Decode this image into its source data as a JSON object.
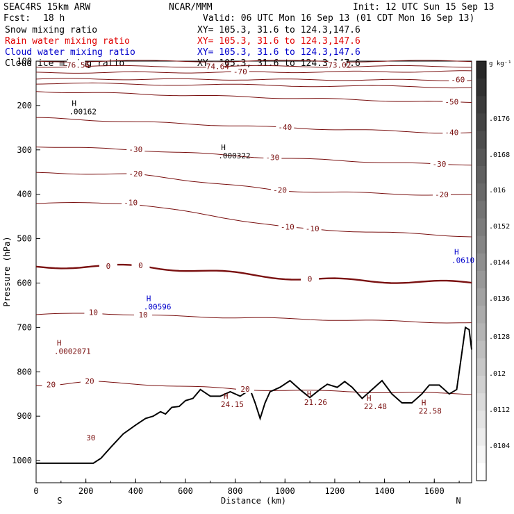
{
  "header": {
    "model": "SEAC4RS 15km ARW",
    "org": "NCAR/MMM",
    "init": "Init: 12 UTC Sun 15 Sep 13",
    "fcst_label": "Fcst:",
    "fcst_value": "18 h",
    "valid": "Valid: 06 UTC Mon 16 Sep 13 (01 CDT Mon 16 Sep 13)",
    "fields": [
      {
        "name": "Snow mixing ratio",
        "color": "#000000",
        "xy": "XY= 105.3, 31.6 to 124.3,147.6"
      },
      {
        "name": "Rain water mixing ratio",
        "color": "#e00000",
        "xy": "XY= 105.3, 31.6 to 124.3,147.6"
      },
      {
        "name": "Cloud water mixing ratio",
        "color": "#0000cc",
        "xy": "XY= 105.3, 31.6 to 124.3,147.6"
      },
      {
        "name": "Cloud ice mixing ratio",
        "color": "#000000",
        "xy": "XY= 105.3, 31.6 to 124.3,147.6"
      }
    ]
  },
  "chart_data": {
    "type": "contour",
    "xlabel": "Distance (km)",
    "ylabel": "Pressure (hPa)",
    "xlim": [
      0,
      1750
    ],
    "ylim": [
      1050,
      100
    ],
    "x_ticks": [
      0,
      200,
      400,
      600,
      800,
      1000,
      1200,
      1400,
      1600
    ],
    "y_ticks": [
      100,
      200,
      300,
      400,
      500,
      600,
      700,
      800,
      900,
      1000
    ],
    "x_tick_label_100": "100",
    "end_labels": {
      "left": "S",
      "right": "N"
    },
    "colorbar": {
      "unit": "g kg⁻¹",
      "labels": [
        ".0176",
        ".0168",
        ".016",
        ".0152",
        ".0144",
        ".0136",
        ".0128",
        ".012",
        ".0112",
        ".0104"
      ]
    },
    "temperature_contours": [
      {
        "level": -76.56,
        "label": "-76.56",
        "x": 160,
        "p": 110
      },
      {
        "level": -74.64,
        "label": "-74.64",
        "x": 720,
        "p": 113
      },
      {
        "level": -73.02,
        "label": "-73.02",
        "x": 1210,
        "p": 110
      },
      {
        "level": -70,
        "label": "-70",
        "x": 820,
        "p": 125
      },
      {
        "level": -60,
        "label": "-60",
        "x": 1695,
        "p": 143
      },
      {
        "level": -50,
        "label": "-50",
        "x": 1670,
        "p": 193
      },
      {
        "level": -40,
        "label": "-40",
        "x": 1000,
        "p": 250
      },
      {
        "level": -40,
        "label": "-40",
        "x": 1670,
        "p": 262
      },
      {
        "level": -30,
        "label": "-30",
        "x": 400,
        "p": 300
      },
      {
        "level": -30,
        "label": "-30",
        "x": 950,
        "p": 318
      },
      {
        "level": -30,
        "label": "-30",
        "x": 1620,
        "p": 333
      },
      {
        "level": -20,
        "label": "-20",
        "x": 400,
        "p": 355
      },
      {
        "level": -20,
        "label": "-20",
        "x": 980,
        "p": 392
      },
      {
        "level": -20,
        "label": "-20",
        "x": 1630,
        "p": 402
      },
      {
        "level": -10,
        "label": "-10",
        "x": 380,
        "p": 420
      },
      {
        "level": -10,
        "label": "-10",
        "x": 1010,
        "p": 475
      },
      {
        "level": -10,
        "label": "-10",
        "x": 1110,
        "p": 479
      },
      {
        "level": 0,
        "label": "0",
        "x": 290,
        "p": 563
      },
      {
        "level": 0,
        "label": "0",
        "x": 420,
        "p": 562
      },
      {
        "level": 0,
        "label": "0",
        "x": 1100,
        "p": 592
      },
      {
        "level": 10,
        "label": "10",
        "x": 230,
        "p": 667
      },
      {
        "level": 10,
        "label": "10",
        "x": 430,
        "p": 673
      },
      {
        "level": 20,
        "label": "20",
        "x": 60,
        "p": 830
      },
      {
        "level": 20,
        "label": "20",
        "x": 215,
        "p": 822
      },
      {
        "level": 20,
        "label": "20",
        "x": 840,
        "p": 840
      },
      {
        "level": 30,
        "label": "30",
        "x": 220,
        "p": 950
      }
    ],
    "highs": [
      {
        "value": ".00162",
        "x": 160,
        "p": 210,
        "color": "#000000"
      },
      {
        "value": ".000322",
        "x": 760,
        "p": 310,
        "color": "#000000"
      },
      {
        "value": ".00596",
        "x": 460,
        "p": 650,
        "color": "#0000cc"
      },
      {
        "value": ".0002071",
        "x": 100,
        "p": 750,
        "color": "#7a1010"
      },
      {
        "value": "24.15",
        "x": 770,
        "p": 870,
        "color": "#7a1010"
      },
      {
        "value": "21.26",
        "x": 1105,
        "p": 865,
        "color": "#7a1010"
      },
      {
        "value": "22.48",
        "x": 1345,
        "p": 875,
        "color": "#7a1010"
      },
      {
        "value": "22.58",
        "x": 1565,
        "p": 885,
        "color": "#7a1010"
      },
      {
        "value": ".0610",
        "x": 1760,
        "p": 545,
        "color": "#0000cc"
      }
    ],
    "terrain": [
      {
        "x": 0,
        "p": 1006
      },
      {
        "x": 150,
        "p": 1006
      },
      {
        "x": 230,
        "p": 1006
      },
      {
        "x": 260,
        "p": 995
      },
      {
        "x": 300,
        "p": 970
      },
      {
        "x": 350,
        "p": 940
      },
      {
        "x": 400,
        "p": 920
      },
      {
        "x": 440,
        "p": 905
      },
      {
        "x": 470,
        "p": 900
      },
      {
        "x": 500,
        "p": 890
      },
      {
        "x": 520,
        "p": 895
      },
      {
        "x": 545,
        "p": 880
      },
      {
        "x": 575,
        "p": 878
      },
      {
        "x": 600,
        "p": 865
      },
      {
        "x": 630,
        "p": 860
      },
      {
        "x": 660,
        "p": 840
      },
      {
        "x": 700,
        "p": 855
      },
      {
        "x": 740,
        "p": 855
      },
      {
        "x": 780,
        "p": 845
      },
      {
        "x": 820,
        "p": 855
      },
      {
        "x": 860,
        "p": 840
      },
      {
        "x": 880,
        "p": 870
      },
      {
        "x": 900,
        "p": 905
      },
      {
        "x": 920,
        "p": 870
      },
      {
        "x": 940,
        "p": 845
      },
      {
        "x": 980,
        "p": 835
      },
      {
        "x": 1020,
        "p": 820
      },
      {
        "x": 1060,
        "p": 840
      },
      {
        "x": 1100,
        "p": 858
      },
      {
        "x": 1140,
        "p": 840
      },
      {
        "x": 1170,
        "p": 828
      },
      {
        "x": 1210,
        "p": 835
      },
      {
        "x": 1240,
        "p": 822
      },
      {
        "x": 1270,
        "p": 835
      },
      {
        "x": 1310,
        "p": 860
      },
      {
        "x": 1350,
        "p": 840
      },
      {
        "x": 1390,
        "p": 820
      },
      {
        "x": 1430,
        "p": 850
      },
      {
        "x": 1470,
        "p": 870
      },
      {
        "x": 1510,
        "p": 870
      },
      {
        "x": 1550,
        "p": 850
      },
      {
        "x": 1580,
        "p": 830
      },
      {
        "x": 1620,
        "p": 830
      },
      {
        "x": 1660,
        "p": 850
      },
      {
        "x": 1690,
        "p": 840
      },
      {
        "x": 1710,
        "p": 760
      },
      {
        "x": 1725,
        "p": 700
      },
      {
        "x": 1740,
        "p": 705
      },
      {
        "x": 1750,
        "p": 750
      }
    ]
  }
}
